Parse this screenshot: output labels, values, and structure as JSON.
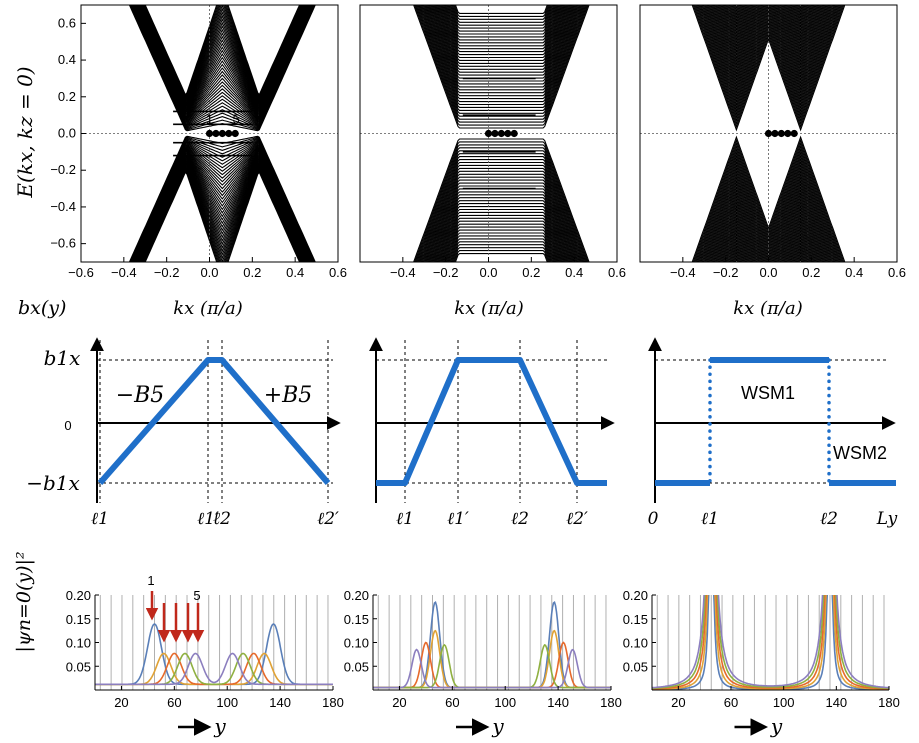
{
  "colors": {
    "band": "#000000",
    "profile": "#1f6fc9",
    "arrow_red": "#c0281b",
    "grid": "#b0b0b0",
    "wf_series": [
      "#5a7fb8",
      "#e0a235",
      "#e66a2c",
      "#8fb040",
      "#8c7fbf"
    ]
  },
  "labels": {
    "row1_ylabel": "E(kx, kz = 0)",
    "row1_xlabel": "kx    (π/a)",
    "row2_ylabel": "bx(y)",
    "row3_ylabel": "|ψn=0(y)|²",
    "row3_xlabel": "y",
    "row1_marker_first": "1",
    "row1_marker_last": "5",
    "row3_marker_first": "1",
    "row3_marker_last": "5",
    "profile1_left": "−B5",
    "profile1_right": "+B5",
    "profile3_upper": "WSM1",
    "profile3_lower": "WSM2",
    "profile_y_top": "b1x",
    "profile_y_zero": "0",
    "profile_y_bottom": "−b1x",
    "profile3_origin": "0",
    "profile3_axis_end": "Ly"
  },
  "chart_data": [
    {
      "type": "line",
      "panel": "band-structure-1",
      "xlabel": "kx (π/a)",
      "ylabel": "E(kx, kz = 0)",
      "xlim": [
        -0.6,
        0.6
      ],
      "ylim": [
        -0.7,
        0.7
      ],
      "xticks": [
        "−0.6",
        "−0.4",
        "−0.2",
        "0.0",
        "0.2",
        "0.4",
        "0.6"
      ],
      "yticks": [
        "0.6",
        "0.4",
        "0.2",
        "0.0",
        "−0.2",
        "−0.4",
        "−0.6"
      ],
      "zero_mode_kx": [
        0.0,
        0.03,
        0.06,
        0.09,
        0.12
      ],
      "zero_mode_labels": [
        "1",
        "5"
      ]
    },
    {
      "type": "line",
      "panel": "band-structure-2",
      "xlabel": "kx (π/a)",
      "xlim": [
        -0.6,
        0.6
      ],
      "ylim": [
        -0.7,
        0.7
      ],
      "xticks": [
        "−0.4",
        "−0.2",
        "0.0",
        "0.2",
        "0.4",
        "0.6"
      ],
      "zero_mode_kx": [
        0.0,
        0.03,
        0.06,
        0.09,
        0.12
      ]
    },
    {
      "type": "line",
      "panel": "band-structure-3",
      "xlabel": "kx (π/a)",
      "xlim": [
        -0.6,
        0.6
      ],
      "ylim": [
        -0.7,
        0.7
      ],
      "xticks": [
        "−0.4",
        "−0.2",
        "0.0",
        "0.2",
        "0.4",
        "0.6"
      ],
      "zero_mode_kx": [
        0.0,
        0.03,
        0.06,
        0.09,
        0.12
      ]
    },
    {
      "type": "line",
      "panel": "profile-1",
      "ylabel": "bx(y)",
      "yticks": [
        "b1x",
        "0",
        "−b1x"
      ],
      "xticks": [
        "ℓ1",
        "ℓ1′",
        "ℓ2",
        "ℓ2′"
      ],
      "points": [
        [
          "ℓ1",
          -1
        ],
        [
          "ℓ1′",
          1
        ],
        [
          "ℓ2",
          1
        ],
        [
          "ℓ2′",
          -1
        ]
      ]
    },
    {
      "type": "line",
      "panel": "profile-2",
      "xticks": [
        "ℓ1",
        "ℓ1′",
        "ℓ2",
        "ℓ2′"
      ],
      "points": [
        [
          "start",
          -1
        ],
        [
          "ℓ1",
          -1
        ],
        [
          "ℓ1′",
          1
        ],
        [
          "ℓ2",
          1
        ],
        [
          "ℓ2′",
          -1
        ],
        [
          "end",
          -1
        ]
      ]
    },
    {
      "type": "line",
      "panel": "profile-3",
      "xticks": [
        "0",
        "ℓ1",
        "ℓ2",
        "Ly"
      ],
      "segments": [
        [
          [
            "0",
            -1
          ],
          [
            "ℓ1",
            -1
          ]
        ],
        [
          [
            "ℓ1",
            1
          ],
          [
            "ℓ2",
            1
          ]
        ],
        [
          [
            "ℓ2",
            -1
          ],
          [
            "end",
            -1
          ]
        ]
      ]
    },
    {
      "type": "line",
      "panel": "wavefunction-1",
      "xlabel": "y",
      "ylabel": "|ψn=0(y)|²",
      "xlim": [
        0,
        180
      ],
      "ylim": [
        0,
        0.2
      ],
      "xticks": [
        "20",
        "60",
        "100",
        "140",
        "180"
      ],
      "yticks": [
        "0.20",
        "0.15",
        "0.10",
        "0.05"
      ],
      "series": [
        {
          "peaks": [
            [
              45,
              0.127
            ],
            [
              135,
              0.127
            ]
          ],
          "color": "#5a7fb8"
        },
        {
          "peaks": [
            [
              52,
              0.065
            ],
            [
              128,
              0.065
            ]
          ],
          "color": "#e0a235"
        },
        {
          "peaks": [
            [
              60,
              0.065
            ],
            [
              120,
              0.065
            ]
          ],
          "color": "#e66a2c"
        },
        {
          "peaks": [
            [
              68,
              0.065
            ],
            [
              112,
              0.065
            ]
          ],
          "color": "#8fb040"
        },
        {
          "peaks": [
            [
              76,
              0.065
            ],
            [
              104,
              0.065
            ]
          ],
          "color": "#8c7fbf"
        }
      ]
    },
    {
      "type": "line",
      "panel": "wavefunction-2",
      "xlabel": "y",
      "xlim": [
        0,
        180
      ],
      "ylim": [
        0,
        0.2
      ],
      "xticks": [
        "20",
        "60",
        "100",
        "140",
        "180"
      ],
      "yticks": [
        "0.20",
        "0.15",
        "0.10",
        "0.05"
      ],
      "series": [
        {
          "peaks": [
            [
              47,
              0.18
            ],
            [
              137,
              0.18
            ]
          ],
          "color": "#5a7fb8"
        },
        {
          "peaks": [
            [
              47,
              0.12
            ],
            [
              137,
              0.12
            ]
          ],
          "color": "#e0a235"
        },
        {
          "peaks": [
            [
              40,
              0.095
            ],
            [
              144,
              0.095
            ]
          ],
          "color": "#e66a2c"
        },
        {
          "peaks": [
            [
              54,
              0.09
            ],
            [
              130,
              0.09
            ]
          ],
          "color": "#8fb040"
        },
        {
          "peaks": [
            [
              33,
              0.08
            ],
            [
              151,
              0.08
            ]
          ],
          "color": "#8c7fbf"
        }
      ]
    },
    {
      "type": "line",
      "panel": "wavefunction-3",
      "xlabel": "y",
      "xlim": [
        0,
        180
      ],
      "ylim": [
        0,
        0.2
      ],
      "xticks": [
        "20",
        "60",
        "100",
        "140",
        "180"
      ],
      "yticks": [
        "0.20",
        "0.15",
        "0.10",
        "0.05"
      ],
      "series": [
        {
          "peaks": [
            [
              45,
              0.2
            ],
            [
              135,
              0.2
            ]
          ],
          "color": "#5a7fb8"
        },
        {
          "peaks": [
            [
              45,
              0.2
            ],
            [
              135,
              0.2
            ]
          ],
          "color": "#e0a235"
        },
        {
          "peaks": [
            [
              45,
              0.2
            ],
            [
              135,
              0.2
            ]
          ],
          "color": "#e66a2c"
        },
        {
          "peaks": [
            [
              45,
              0.2
            ],
            [
              135,
              0.2
            ]
          ],
          "color": "#8fb040"
        },
        {
          "peaks": [
            [
              45,
              0.2
            ],
            [
              135,
              0.2
            ]
          ],
          "color": "#8c7fbf"
        }
      ]
    }
  ]
}
